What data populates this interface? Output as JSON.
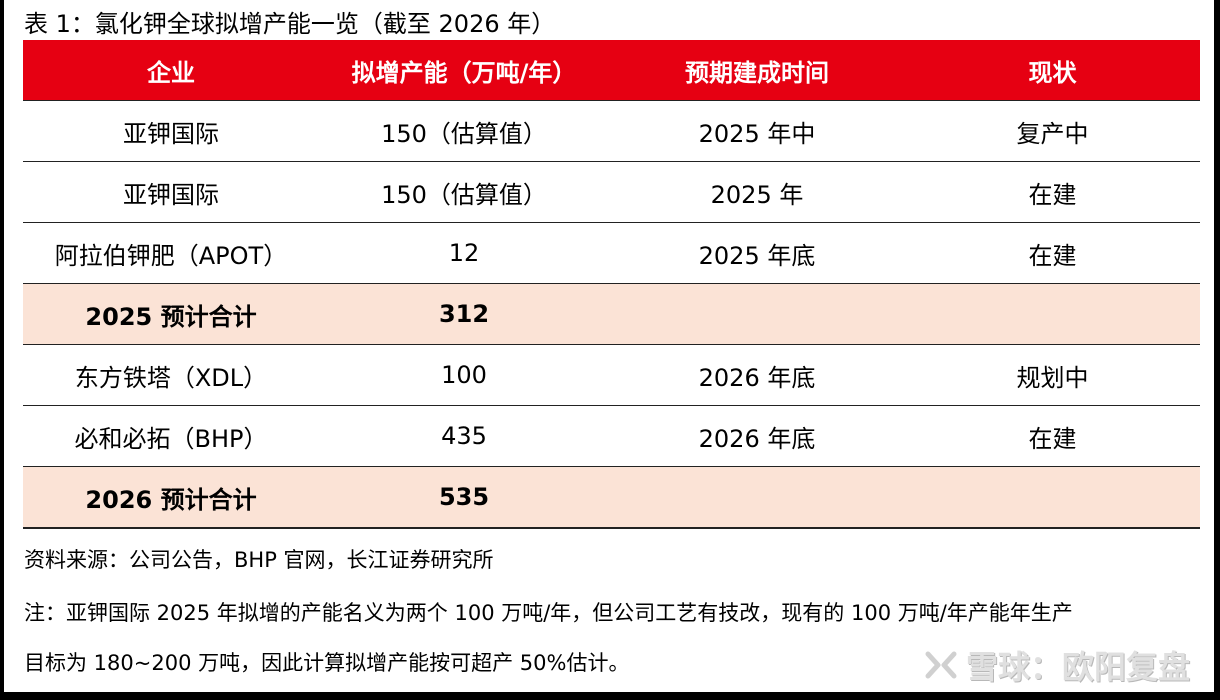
{
  "caption": "表 1：氯化钾全球拟增产能一览（截至 2026 年）",
  "table": {
    "headers": [
      "企业",
      "拟增产能（万吨/年）",
      "预期建成时间",
      "现状"
    ],
    "rows": [
      [
        "亚钾国际",
        "150（估算值）",
        "2025 年中",
        "复产中"
      ],
      [
        "亚钾国际",
        "150（估算值）",
        "2025 年",
        "在建"
      ],
      [
        "阿拉伯钾肥（APOT）",
        "12",
        "2025 年底",
        "在建"
      ],
      [
        "2025 预计合计",
        "312",
        "",
        ""
      ],
      [
        "东方铁塔（XDL）",
        "100",
        "2026 年底",
        "规划中"
      ],
      [
        "必和必拓（BHP）",
        "435",
        "2026 年底",
        "在建"
      ],
      [
        "2026 预计合计",
        "535",
        "",
        ""
      ]
    ]
  },
  "source": "资料来源：公司公告，BHP 官网，长江证券研究所",
  "note_line1": "注：亚钾国际 2025 年拟增的产能名义为两个 100 万吨/年，但公司工艺有技改，现有的 100 万吨/年产能年生产",
  "note_line2": "目标为 180~200 万吨，因此计算拟增产能按可超产 50%估计。",
  "watermark": {
    "icon": "xueqiu-logo-icon",
    "text": "雪球：欧阳复盘"
  },
  "colors": {
    "header_bg": "#e60012",
    "total_row_bg": "#fbe3d6"
  }
}
